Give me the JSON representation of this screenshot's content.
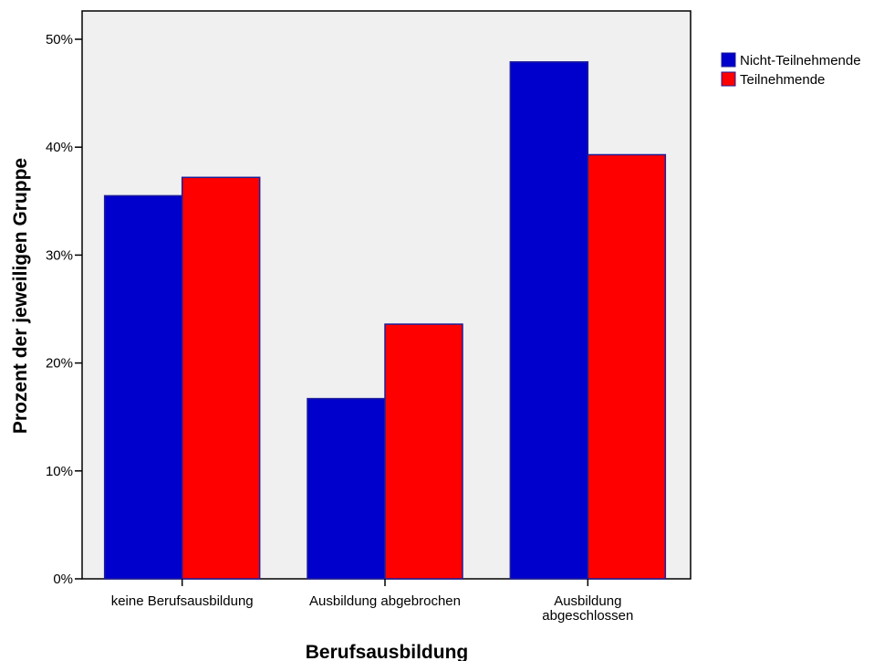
{
  "chart_data": {
    "type": "bar",
    "categories": [
      [
        "keine Berufsausbildung"
      ],
      [
        "Ausbildung abgebrochen"
      ],
      [
        "Ausbildung",
        "abgeschlossen"
      ]
    ],
    "series": [
      {
        "name": "Nicht-Teilnehmende",
        "color": "#0000cc",
        "values": [
          35.5,
          16.7,
          47.9
        ]
      },
      {
        "name": "Teilnehmende",
        "color": "#ff0000",
        "values": [
          37.2,
          23.6,
          39.3
        ]
      }
    ],
    "xlabel": "Berufsausbildung",
    "ylabel": "Prozent der jeweiligen Gruppe",
    "ylim": [
      0,
      50
    ],
    "yticks": [
      0,
      10,
      20,
      30,
      40,
      50
    ],
    "ytick_labels": [
      "0%",
      "10%",
      "20%",
      "30%",
      "40%",
      "50%"
    ],
    "legend_position": "top-right",
    "plot_background": "#f0f0f0",
    "bar_edge_color": "#1e1e99"
  }
}
